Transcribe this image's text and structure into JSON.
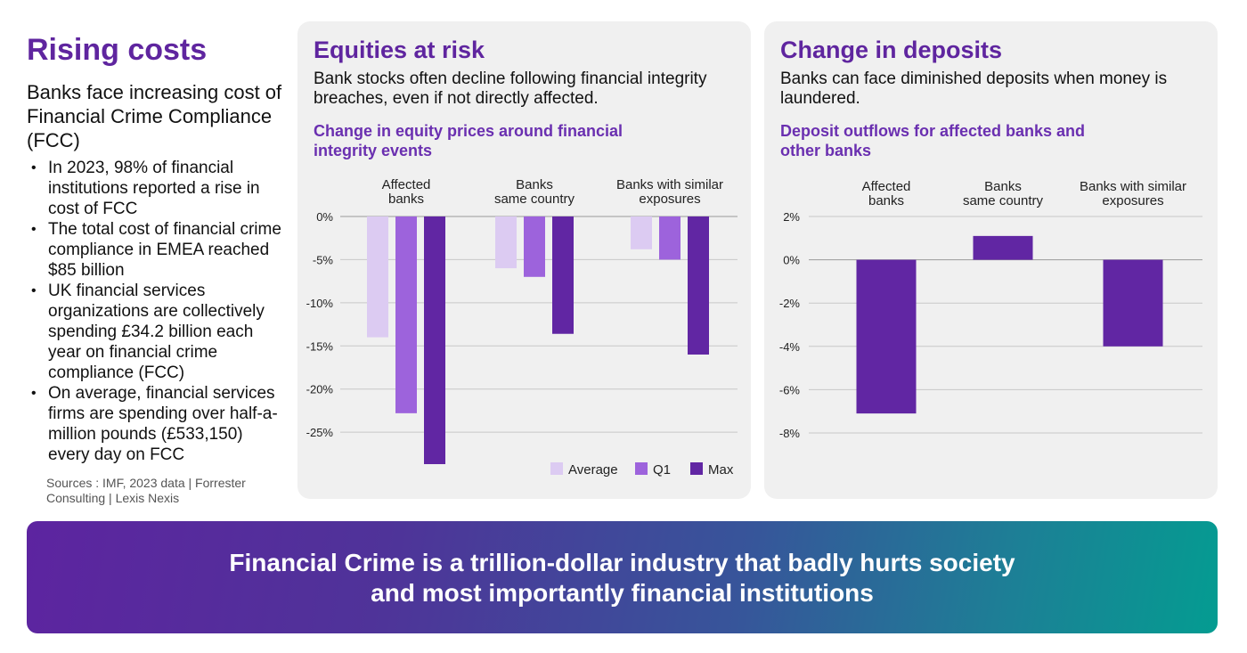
{
  "left": {
    "title": "Rising costs",
    "subtitle": "Banks face increasing cost of Financial Crime Compliance (FCC)",
    "bullets": [
      "In 2023, 98% of financial institutions reported a rise in cost of FCC",
      "The total cost of financial crime compliance in EMEA reached $85 billion",
      "UK financial services organizations are collectively spending £34.2 billion each year on financial crime compliance (FCC)",
      "On average, financial services firms are spending over half-a-million pounds (£533,150) every day on FCC"
    ],
    "sources": "Sources : IMF, 2023 data | Forrester Consulting | Lexis Nexis"
  },
  "equities": {
    "title": "Equities at risk",
    "description": "Bank stocks often decline following financial integrity breaches, even if not directly affected.",
    "subtitle": "Change in equity prices around financial integrity events"
  },
  "deposits": {
    "title": "Change in deposits",
    "description": "Banks can face diminished deposits when money is laundered.",
    "subtitle": "Deposit outflows for affected banks and other banks"
  },
  "banner": {
    "line1": "Financial Crime is a trillion-dollar industry that badly hurts society",
    "line2": "and most importantly financial institutions"
  },
  "colors": {
    "accent": "#5f259f",
    "average": "#dccbf2",
    "q1": "#9d63dc",
    "max": "#6126a3",
    "grid": "#c8c8c8"
  },
  "chart_data": [
    {
      "type": "bar",
      "title": "Change in equity prices around financial integrity events",
      "categories": [
        [
          "Affected",
          "banks"
        ],
        [
          "Banks",
          "same country"
        ],
        [
          "Banks with similar",
          "exposures"
        ]
      ],
      "series": [
        {
          "name": "Average",
          "values": [
            -14,
            -6,
            -3.8
          ]
        },
        {
          "name": "Q1",
          "values": [
            -22.8,
            -7,
            -5
          ]
        },
        {
          "name": "Max",
          "values": [
            -28.7,
            -13.6,
            -16
          ]
        }
      ],
      "ylim": [
        -28.7,
        0
      ],
      "yticks": [
        0,
        -5,
        -10,
        -15,
        -20,
        -25
      ],
      "ytick_labels": [
        "0%",
        "-5%",
        "-10%",
        "-15%",
        "-20%",
        "-25%"
      ],
      "xlabel": "",
      "ylabel": "",
      "legend": "bottom-right",
      "grid": true
    },
    {
      "type": "bar",
      "title": "Deposit outflows for affected banks and other banks",
      "categories": [
        [
          "Affected",
          "banks"
        ],
        [
          "Banks",
          "same country"
        ],
        [
          "Banks with similar",
          "exposures"
        ]
      ],
      "series": [
        {
          "name": "Deposits",
          "values": [
            -7.1,
            1.1,
            -4
          ]
        }
      ],
      "ylim": [
        -8,
        2
      ],
      "yticks": [
        2,
        0,
        -2,
        -4,
        -6,
        -8
      ],
      "ytick_labels": [
        "2%",
        "0%",
        "-2%",
        "-4%",
        "-6%",
        "-8%"
      ],
      "xlabel": "",
      "ylabel": "",
      "legend": "none",
      "grid": true
    }
  ]
}
